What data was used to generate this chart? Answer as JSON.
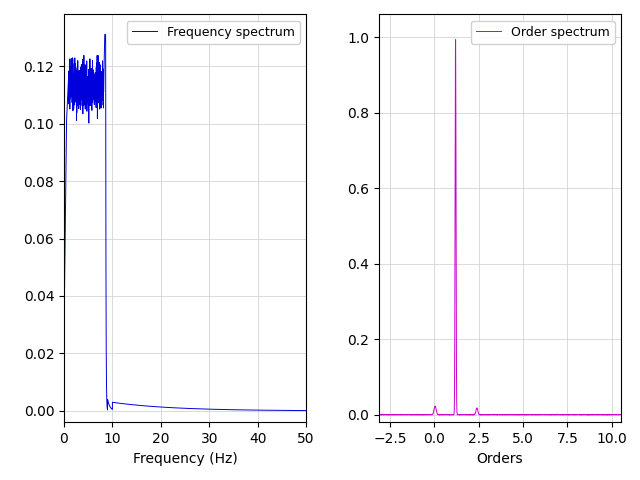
{
  "fig_width": 6.4,
  "fig_height": 4.8,
  "dpi": 100,
  "left_xlabel": "Frequency (Hz)",
  "left_legend": "Frequency spectrum",
  "left_line_color": "#0000dd",
  "left_xlim": [
    0,
    50
  ],
  "left_ylim": [
    -0.004,
    0.138
  ],
  "left_yticks": [
    0.0,
    0.02,
    0.04,
    0.06,
    0.08,
    0.1,
    0.12
  ],
  "left_xticks": [
    0,
    10,
    20,
    30,
    40,
    50
  ],
  "right_xlabel": "Orders",
  "right_legend": "Order spectrum",
  "right_line_color": "#cc00cc",
  "right_xlim": [
    -3.125,
    10.5
  ],
  "right_ylim": [
    -0.02,
    1.06
  ],
  "right_yticks": [
    0.0,
    0.2,
    0.4,
    0.6,
    0.8,
    1.0
  ],
  "right_xticks": [
    -2.5,
    0.0,
    2.5,
    5.0,
    7.5,
    10.0
  ]
}
